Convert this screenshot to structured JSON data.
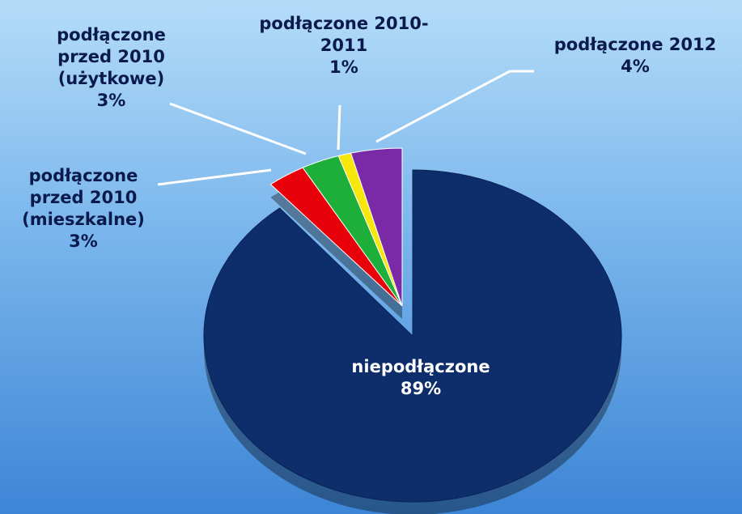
{
  "chart_data": {
    "type": "pie",
    "categories": [
      "niepodłączone",
      "podłączone przed 2010 (mieszkalne)",
      "podłączone przed 2010 (użytkowe)",
      "podłączone 2010-2011",
      "podłączone 2012"
    ],
    "values": [
      89,
      3,
      3,
      1,
      4
    ],
    "value_labels": [
      "89%",
      "3%",
      "3%",
      "1%",
      "4%"
    ],
    "colors": [
      "#0e2d6b",
      "#e8000b",
      "#1eae3a",
      "#f7e70a",
      "#7a2aa6"
    ]
  }
}
